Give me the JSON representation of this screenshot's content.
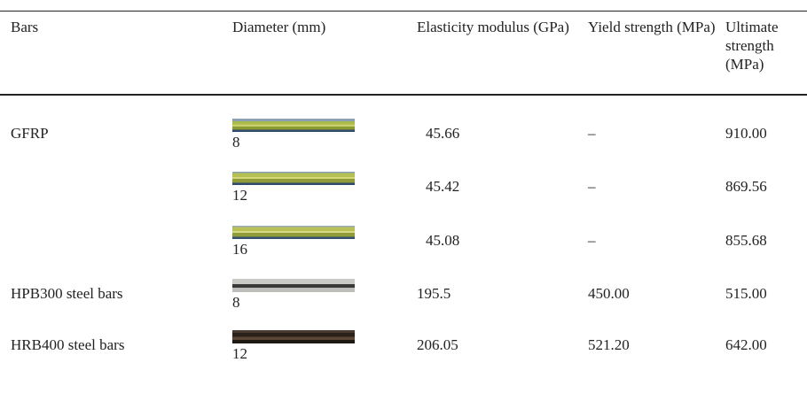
{
  "table": {
    "header": [
      "Bars",
      "Diameter (mm)",
      "Elasticity modulus (GPa)",
      "Yield strength (MPa)",
      "Ultimate strength (MPa)"
    ],
    "rows": [
      [
        "GFRP",
        "8",
        "45.66",
        "–",
        "910.00"
      ],
      [
        null,
        "12",
        "45.42",
        "–",
        "869.56"
      ],
      [
        null,
        "16",
        "45.08",
        "–",
        "855.68"
      ],
      [
        "HPB300 steel bars",
        "8",
        "195.5",
        "450.00",
        "515.00"
      ],
      [
        "HRB400 steel bars",
        "12",
        "206.05",
        "521.20",
        "642.00"
      ]
    ]
  }
}
